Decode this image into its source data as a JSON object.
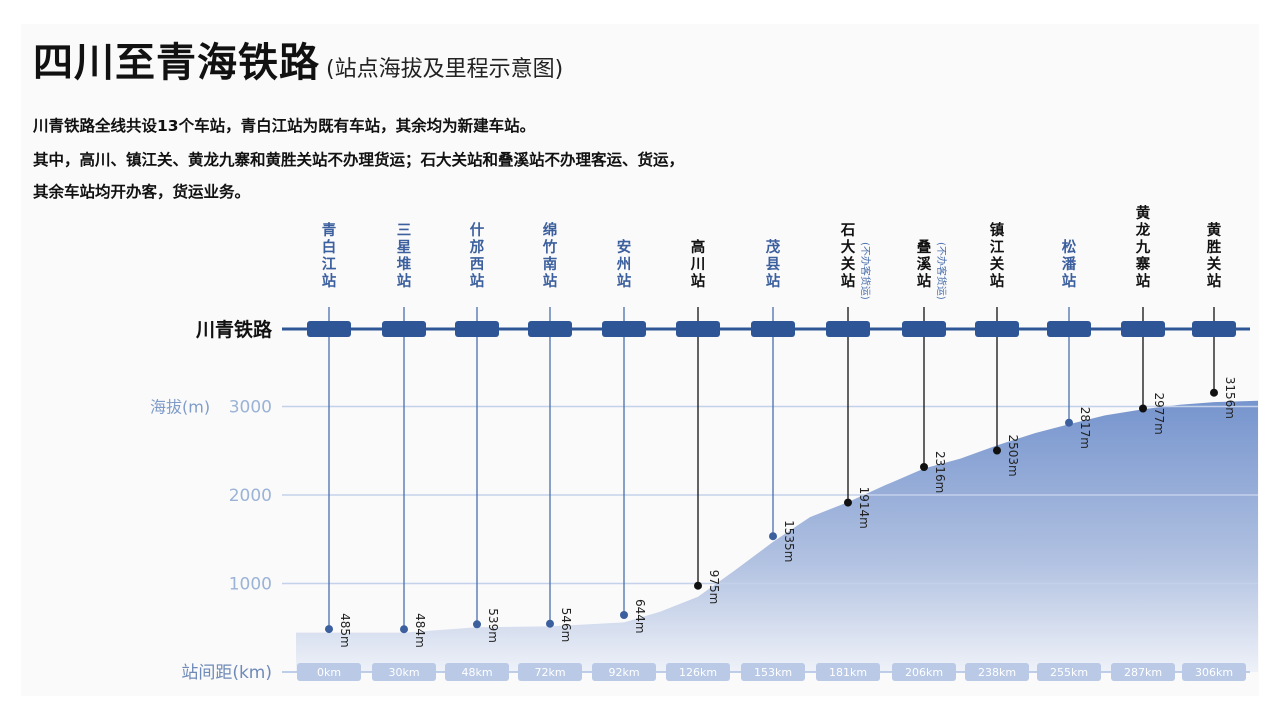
{
  "title": "四川至青海铁路",
  "subtitle": "(站点海拔及里程示意图)",
  "description": [
    "川青铁路全线共设13个车站，青白江站为既有车站，其余均为新建车站。",
    "其中，高川、镇江关、黄龙九寨和黄胜关站不办理货运；石大关站和叠溪站不办理客运、货运，",
    "其余车站均开办客，货运业务。"
  ],
  "chart_data": {
    "type": "area",
    "title": "",
    "railway_label": "川青铁路",
    "ylabel": "海拔(m)",
    "xlabel": "站间距(km)",
    "ylim": [
      0,
      3300
    ],
    "yticks": [
      1000,
      2000,
      3000
    ],
    "stations": [
      {
        "name": "青白江站",
        "km": "0km",
        "elevation": 485,
        "label": "485m",
        "note": ""
      },
      {
        "name": "三星堆站",
        "km": "30km",
        "elevation": 484,
        "label": "484m",
        "note": ""
      },
      {
        "name": "什邡西站",
        "km": "48km",
        "elevation": 539,
        "label": "539m",
        "note": ""
      },
      {
        "name": "绵竹南站",
        "km": "72km",
        "elevation": 546,
        "label": "546m",
        "note": ""
      },
      {
        "name": "安州站",
        "km": "92km",
        "elevation": 644,
        "label": "644m",
        "note": ""
      },
      {
        "name": "高川站",
        "km": "126km",
        "elevation": 975,
        "label": "975m",
        "note": ""
      },
      {
        "name": "茂县站",
        "km": "153km",
        "elevation": 1535,
        "label": "1535m",
        "note": ""
      },
      {
        "name": "石大关站",
        "km": "181km",
        "elevation": 1914,
        "label": "1914m",
        "note": "(不办客货运)"
      },
      {
        "name": "叠溪站",
        "km": "206km",
        "elevation": 2316,
        "label": "2316m",
        "note": "(不办客货运)"
      },
      {
        "name": "镇江关站",
        "km": "238km",
        "elevation": 2503,
        "label": "2503m",
        "note": ""
      },
      {
        "name": "松潘站",
        "km": "255km",
        "elevation": 2817,
        "label": "2817m",
        "note": ""
      },
      {
        "name": "黄龙九寨站",
        "km": "287km",
        "elevation": 2977,
        "label": "2977m",
        "note": ""
      },
      {
        "name": "黄胜关站",
        "km": "306km",
        "elevation": 3156,
        "label": "3156m",
        "note": ""
      }
    ],
    "name_color_by_station": [
      "#3c5f9e",
      "#3c5f9e",
      "#3c5f9e",
      "#3c5f9e",
      "#3c5f9e",
      "#111111",
      "#3c5f9e",
      "#111111",
      "#111111",
      "#111111",
      "#3c5f9e",
      "#111111",
      "#111111"
    ],
    "colors": {
      "accent": "#2e5596",
      "area_top": "#6f8fcb",
      "area_bottom": "#eef1f8",
      "grid": "#b9c9e6"
    }
  }
}
